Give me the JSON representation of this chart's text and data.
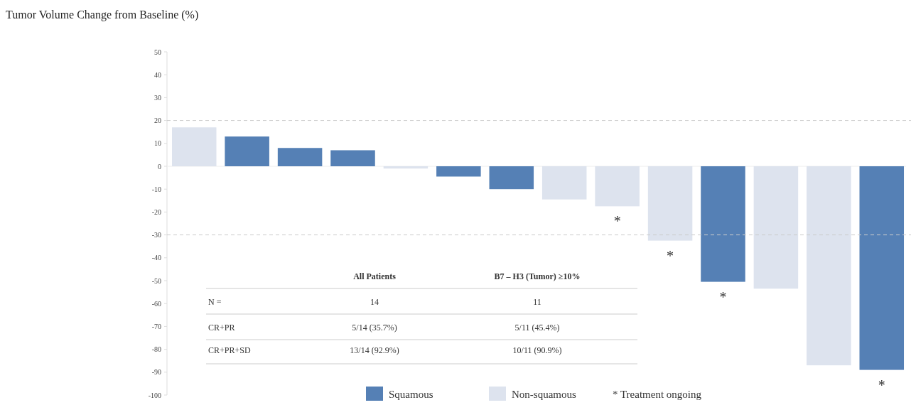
{
  "chart_data": {
    "type": "bar",
    "title": "Tumor Volume Change from Baseline (%)",
    "categories": [
      null,
      null,
      null,
      null,
      null,
      null,
      null,
      null,
      null,
      null,
      null,
      null,
      null,
      null
    ],
    "series": [
      {
        "name": "Squamous",
        "color": "#5580b5",
        "values": [
          null,
          13,
          8,
          7,
          null,
          -4.5,
          -10,
          null,
          null,
          null,
          -50.5,
          null,
          null,
          -89
        ],
        "value_labels": [
          null,
          null,
          null,
          null,
          null,
          null,
          null,
          null,
          null,
          null,
          "*",
          null,
          null,
          "*"
        ]
      },
      {
        "name": "Non-squamous",
        "color": "#dde3ee",
        "values": [
          17,
          null,
          null,
          null,
          -1,
          null,
          null,
          -14.5,
          -17.5,
          -32.5,
          null,
          -53.5,
          -87,
          null
        ],
        "value_labels": [
          null,
          null,
          null,
          null,
          null,
          null,
          null,
          null,
          "*",
          "*",
          null,
          null,
          null,
          null
        ]
      }
    ],
    "ylim": [
      -100,
      50
    ],
    "yticks": [
      -100,
      -90,
      -80,
      -70,
      -60,
      -50,
      -40,
      -30,
      -20,
      -10,
      0,
      10,
      20,
      30,
      40,
      50
    ],
    "ref_lines": [
      {
        "axis": "y",
        "value": 20,
        "color": "#cccccc",
        "line_style": "dashed"
      },
      {
        "axis": "y",
        "value": -30,
        "color": "#cccccc",
        "line_style": "dashed"
      }
    ],
    "annotations": [
      "All Patients",
      "B7 – H3 (Tumor) ≥10%",
      "N =",
      "14",
      "11",
      "CR+PR",
      "5/14 (35.7%)",
      "5/11 (45.4%)",
      "CR+PR+SD",
      "13/14 (92.9%)",
      "10/11 (90.9%)",
      "* Treatment ongoing"
    ],
    "legend": "bottom",
    "grid": false
  }
}
